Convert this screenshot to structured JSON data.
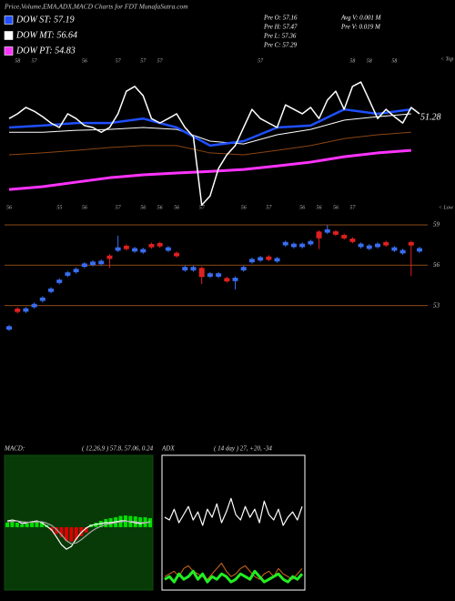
{
  "header": {
    "title": "Price,Volume,EMA,ADX,MACD Charts for FDT MunafaSutra.com",
    "stats": [
      [
        "Pre  O: 57.16",
        "Pre  H: 57.47",
        "Pre  L: 57.36",
        "Pre  C: 57.29"
      ],
      [
        "Avg V: 0.001 M",
        "Pre  V: 0.019 M"
      ]
    ]
  },
  "chart_data": [
    {
      "type": "line",
      "x": [
        0,
        1,
        2,
        3,
        4,
        5,
        6,
        7,
        8,
        9,
        10,
        11,
        12,
        13,
        14,
        15,
        16,
        17,
        18,
        19,
        20,
        21,
        22,
        23,
        24,
        25,
        26,
        27,
        28,
        29,
        30,
        31,
        32,
        33,
        34,
        35,
        36,
        37,
        38,
        39,
        40,
        41,
        42,
        43,
        44,
        45,
        46,
        47,
        48,
        49
      ],
      "xlim": [
        0,
        49
      ],
      "ylim": [
        54.52,
        59.53
      ],
      "series": [
        {
          "color": "#ffffff",
          "values": [
            57.52,
            57.67,
            57.87,
            57.75,
            57.58,
            57.38,
            57.24,
            57.67,
            57.52,
            57.3,
            57.24,
            57.09,
            57.24,
            57.67,
            58.38,
            58.53,
            58.24,
            57.52,
            57.38,
            57.52,
            57.67,
            57.24,
            56.95,
            54.8,
            55.09,
            55.95,
            56.38,
            56.67,
            57.24,
            57.81,
            57.52,
            57.38,
            57.24,
            57.95,
            57.81,
            57.67,
            57.87,
            57.52,
            58.1,
            58.38,
            57.81,
            58.53,
            58.67,
            58.1,
            57.52,
            57.81,
            57.58,
            57.38,
            57.87,
            57.67
          ]
        },
        {
          "name": "DOW ST: 57.19",
          "color": "#1f4fff",
          "x": [
            0,
            4,
            8,
            12,
            16,
            20,
            24,
            28,
            32,
            36,
            40,
            44,
            48
          ],
          "values": [
            57.24,
            57.3,
            57.38,
            57.38,
            57.52,
            57.24,
            56.67,
            56.81,
            57.24,
            57.3,
            57.81,
            57.67,
            57.81
          ]
        },
        {
          "name": "DOW MT: 56.64",
          "color": "#ffffff",
          "x": [
            0,
            4,
            8,
            12,
            16,
            20,
            24,
            28,
            32,
            36,
            40,
            44,
            48
          ],
          "values": [
            57.09,
            57.09,
            57.15,
            57.18,
            57.24,
            57.18,
            56.81,
            56.72,
            57.01,
            57.18,
            57.47,
            57.58,
            57.67
          ]
        },
        {
          "color": "#8b4513",
          "x": [
            0,
            4,
            8,
            12,
            16,
            20,
            24,
            28,
            32,
            36,
            40,
            44,
            48
          ],
          "values": [
            56.38,
            56.44,
            56.52,
            56.61,
            56.67,
            56.67,
            56.44,
            56.38,
            56.52,
            56.67,
            56.89,
            57.01,
            57.09
          ]
        },
        {
          "name": "DOW PT: 54.83",
          "color": "#ff33ff",
          "x": [
            0,
            4,
            8,
            12,
            16,
            20,
            24,
            28,
            32,
            36,
            40,
            44,
            48
          ],
          "values": [
            55.29,
            55.38,
            55.52,
            55.66,
            55.75,
            55.81,
            55.86,
            55.92,
            56.03,
            56.15,
            56.32,
            56.44,
            56.52
          ]
        }
      ],
      "high_labels": [
        null,
        "58",
        null,
        "57",
        null,
        null,
        null,
        null,
        null,
        "56",
        null,
        null,
        null,
        "57",
        null,
        null,
        "57",
        null,
        "57",
        null,
        null,
        null,
        null,
        null,
        null,
        null,
        null,
        null,
        null,
        null,
        "57",
        null,
        null,
        null,
        null,
        null,
        null,
        null,
        null,
        null,
        null,
        "58",
        null,
        "58",
        null,
        null,
        "58",
        null,
        null,
        null
      ],
      "low_labels": [
        "56",
        null,
        null,
        null,
        null,
        null,
        "55",
        null,
        null,
        "56",
        null,
        null,
        null,
        "57",
        null,
        null,
        "56",
        null,
        "56",
        null,
        "56",
        null,
        null,
        "57",
        null,
        null,
        null,
        null,
        "56",
        null,
        null,
        "57",
        null,
        null,
        null,
        "56",
        null,
        "56",
        null,
        "56",
        null,
        "57",
        null,
        null,
        null,
        null,
        null,
        null,
        null,
        null
      ],
      "top_label": "< Top",
      "low_label": "< Low",
      "end_label": "51.28"
    },
    {
      "type": "candlestick",
      "open": [
        51.22,
        52.78,
        52.55,
        52.88,
        53.35,
        54.02,
        54.68,
        55.22,
        55.48,
        55.88,
        56.02,
        56.08,
        56.72,
        57.08,
        57.45,
        57.02,
        56.95,
        57.58,
        57.65,
        57.08,
        56.92,
        55.62,
        55.62,
        55.8,
        55.15,
        55.15,
        55.05,
        54.82,
        55.62,
        56.22,
        56.35,
        56.65,
        56.28,
        57.48,
        57.35,
        57.35,
        57.55,
        58.5,
        58.42,
        58.52,
        58.25,
        57.98,
        57.35,
        57.22,
        57.35,
        57.72,
        57.08,
        56.88,
        57.72,
        57.02
      ],
      "high": [
        51.57,
        52.88,
        52.9,
        53.23,
        53.7,
        54.37,
        55.03,
        55.57,
        55.83,
        56.23,
        56.37,
        56.43,
        56.82,
        58.2,
        57.55,
        57.37,
        57.3,
        57.68,
        57.75,
        57.43,
        57.02,
        55.97,
        55.97,
        55.9,
        55.5,
        55.5,
        55.15,
        55.17,
        55.97,
        56.57,
        56.7,
        56.75,
        56.63,
        57.83,
        57.7,
        57.7,
        57.9,
        58.6,
        59.0,
        58.62,
        58.35,
        58.08,
        57.7,
        57.57,
        57.7,
        57.82,
        57.43,
        57.23,
        57.82,
        57.37
      ],
      "low": [
        51.12,
        52.43,
        52.45,
        52.78,
        53.25,
        53.92,
        54.58,
        55.12,
        55.38,
        55.78,
        55.92,
        55.98,
        55.8,
        56.98,
        57.1,
        56.92,
        56.85,
        57.23,
        57.3,
        56.98,
        56.57,
        55.52,
        55.52,
        54.6,
        55.05,
        55.05,
        54.7,
        54.2,
        55.52,
        56.12,
        56.25,
        56.3,
        56.18,
        57.38,
        57.25,
        57.25,
        57.45,
        57.2,
        58.32,
        58.17,
        57.9,
        57.63,
        57.25,
        57.12,
        57.25,
        57.37,
        56.98,
        56.78,
        55.2,
        56.92
      ],
      "close": [
        51.47,
        52.53,
        52.8,
        53.13,
        53.6,
        54.27,
        54.93,
        55.47,
        55.73,
        56.13,
        56.27,
        56.33,
        56.47,
        57.33,
        57.2,
        57.27,
        57.2,
        57.33,
        57.4,
        57.33,
        56.67,
        55.87,
        55.87,
        55.13,
        55.4,
        55.4,
        54.8,
        55.07,
        55.87,
        56.47,
        56.6,
        56.4,
        56.53,
        57.73,
        57.6,
        57.6,
        57.8,
        58.0,
        58.67,
        58.27,
        58.0,
        57.73,
        57.6,
        57.47,
        57.6,
        57.47,
        57.33,
        57.13,
        57.47,
        57.27
      ],
      "ylim": [
        50,
        59.2
      ],
      "yticks": [
        59,
        56,
        53
      ],
      "up_color": "#3a6df0",
      "down_color": "#e02020",
      "grid_color": "#8b4a1a"
    },
    {
      "type": "macd",
      "title": "MACD:",
      "subtitle": "( 12,26,9 ) 57.8,  57.06,  0.24",
      "ylim": [
        -1.4,
        1.6
      ],
      "series": [
        {
          "color": "#ffffff",
          "values": [
            0.14,
            0.16,
            0.14,
            0.08,
            0.1,
            0.12,
            0.14,
            0.1,
            0.02,
            -0.06,
            -0.22,
            -0.39,
            -0.49,
            -0.43,
            -0.26,
            -0.12,
            -0.02,
            0.04,
            0.06,
            0.08,
            0.1,
            0.1,
            0.12,
            0.14,
            0.14,
            0.12,
            0.1,
            0.08,
            0.1,
            0.12
          ]
        },
        {
          "color": "#aaaaaa",
          "values": [
            0.12,
            0.13,
            0.14,
            0.12,
            0.11,
            0.11,
            0.12,
            0.12,
            0.09,
            0.04,
            -0.05,
            -0.17,
            -0.3,
            -0.37,
            -0.35,
            -0.28,
            -0.19,
            -0.1,
            -0.03,
            0.02,
            0.06,
            0.08,
            0.1,
            0.12,
            0.13,
            0.13,
            0.12,
            0.1,
            0.1,
            0.11
          ]
        }
      ],
      "histogram": [
        0.1,
        0.12,
        0.1,
        0.06,
        0.08,
        0.1,
        0.12,
        0.1,
        0.05,
        -0.08,
        -0.15,
        -0.22,
        -0.3,
        -0.32,
        -0.28,
        -0.2,
        -0.12,
        0.06,
        0.1,
        0.14,
        0.18,
        0.2,
        0.22,
        0.25,
        0.26,
        0.25,
        0.24,
        0.22,
        0.22,
        0.2
      ],
      "pos_color": "#00e000",
      "neg_color": "#e00000"
    },
    {
      "type": "adx",
      "title": "ADX",
      "subtitle": "( 14 day ) 27, +20, -34",
      "ylim": [
        0,
        50
      ],
      "series": [
        {
          "color": "#ffffff",
          "values": [
            27,
            26,
            30,
            25,
            28,
            31,
            26,
            29,
            24,
            30,
            27,
            32,
            25,
            29,
            34,
            28,
            26,
            31,
            27,
            30,
            25,
            33,
            28,
            26,
            30,
            24,
            27,
            29,
            26,
            31
          ]
        },
        {
          "color": "#d2691e",
          "values": [
            5,
            6,
            7,
            5,
            8,
            9,
            7,
            6,
            5,
            4,
            6,
            8,
            10,
            7,
            5,
            6,
            8,
            9,
            7,
            5,
            4,
            6,
            7,
            5,
            8,
            6,
            5,
            4,
            6,
            8
          ]
        },
        {
          "color": "#22ee22",
          "values": [
            4,
            5,
            3,
            6,
            4,
            5,
            7,
            4,
            6,
            3,
            5,
            4,
            6,
            5,
            3,
            4,
            6,
            5,
            4,
            7,
            5,
            3,
            4,
            5,
            6,
            4,
            3,
            5,
            4,
            6
          ]
        }
      ]
    }
  ]
}
